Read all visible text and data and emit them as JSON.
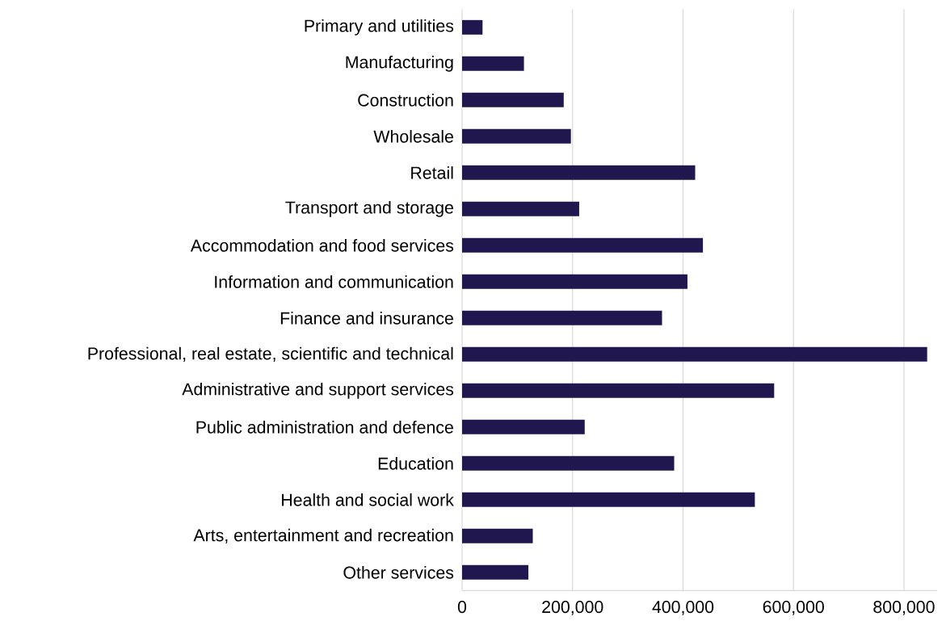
{
  "chart_data": {
    "type": "bar",
    "orientation": "horizontal",
    "categories": [
      "Primary and utilities",
      "Manufacturing",
      "Construction",
      "Wholesale",
      "Retail",
      "Transport and storage",
      "Accommodation and food services",
      "Information and communication",
      "Finance and insurance",
      "Professional, real estate, scientific and technical",
      "Administrative and support services",
      "Public administration and defence",
      "Education",
      "Health and social work",
      "Arts, entertainment and recreation",
      "Other services"
    ],
    "values": [
      37000,
      112000,
      184000,
      197000,
      422000,
      212000,
      436000,
      408000,
      362000,
      842000,
      565000,
      222000,
      384000,
      530000,
      128000,
      120000
    ],
    "color": "#21174f",
    "xticks": [
      {
        "value": 0,
        "label": "0"
      },
      {
        "value": 200000,
        "label": "200,000"
      },
      {
        "value": 400000,
        "label": "400,000"
      },
      {
        "value": 600000,
        "label": "600,000"
      },
      {
        "value": 800000,
        "label": "800,000"
      }
    ],
    "xlim": [
      0,
      860000
    ],
    "grid": "x"
  }
}
